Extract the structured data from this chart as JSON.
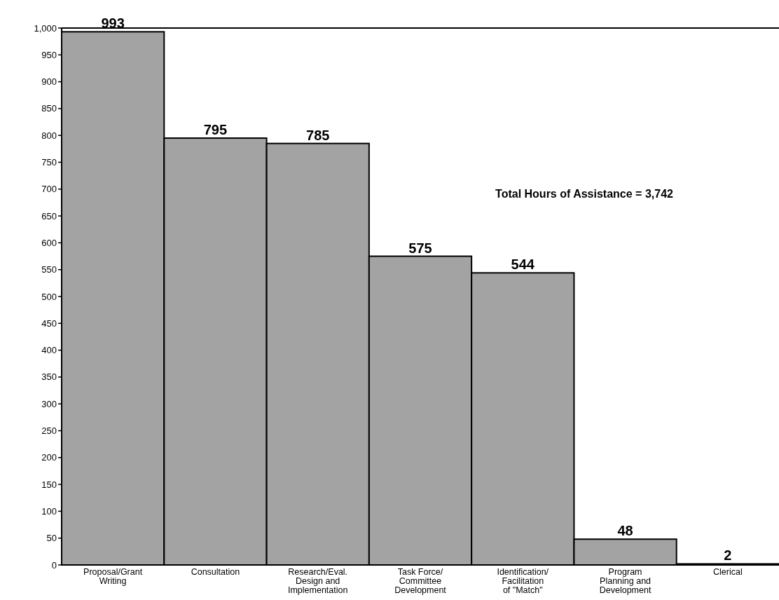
{
  "chart_data": {
    "type": "bar",
    "categories": [
      "Proposal/Grant\nWriting",
      "Consultation",
      "Research/Eval.\nDesign and\nImplementation",
      "Task Force/\nCommittee\nDevelopment",
      "Identification/\nFacilitation\nof \"Match\"",
      "Program\nPlanning and\nDevelopment",
      "Clerical"
    ],
    "values": [
      993,
      795,
      785,
      575,
      544,
      48,
      2
    ],
    "color": "#a3a3a3",
    "ylim": [
      0,
      1000
    ],
    "yticks": [
      0,
      50,
      100,
      150,
      200,
      250,
      300,
      350,
      400,
      450,
      500,
      550,
      600,
      650,
      700,
      750,
      800,
      850,
      900,
      950,
      {
        "value": 1000,
        "label": "1,000"
      }
    ],
    "data_labels": true,
    "annotations": [
      "Total Hours of Assistance = 3,742"
    ]
  }
}
